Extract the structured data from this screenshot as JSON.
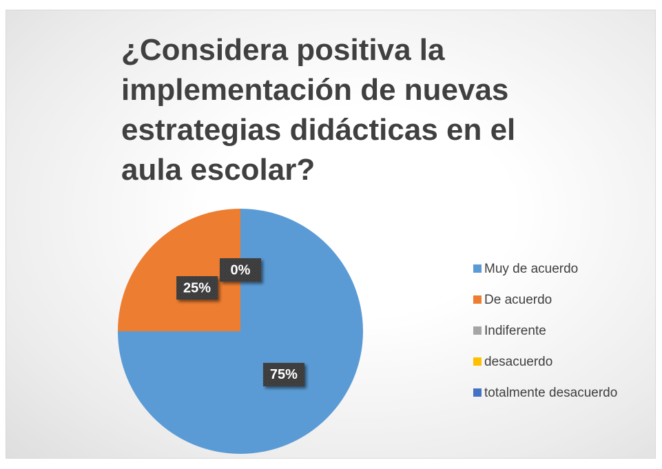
{
  "chart_data": {
    "type": "pie",
    "title": "¿Considera positiva la implementación de nuevas estrategias didácticas en el aula escolar?",
    "categories": [
      "Muy de acuerdo",
      "De acuerdo",
      "Indiferente",
      "desacuerdo",
      "totalmente desacuerdo"
    ],
    "values": [
      75,
      25,
      0,
      0,
      0
    ],
    "value_labels": [
      "75%",
      "25%",
      "0%",
      null,
      null
    ],
    "colors": [
      "#5b9bd5",
      "#ed7d31",
      "#a5a5a5",
      "#ffc000",
      "#4472c4"
    ],
    "legend": "right"
  }
}
